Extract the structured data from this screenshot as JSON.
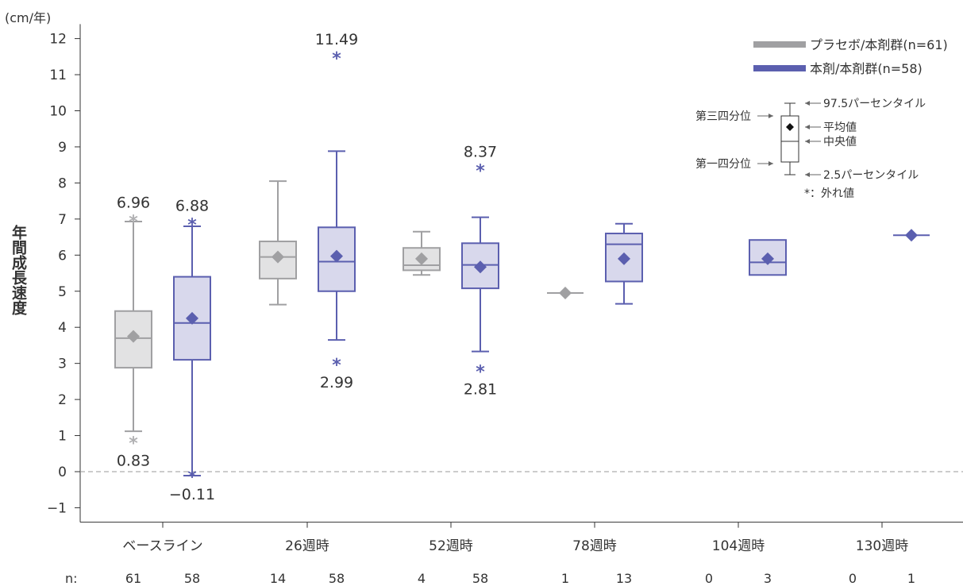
{
  "chart_data": {
    "type": "boxplot",
    "unit_label": "(cm/年)",
    "ylabel": "年間成長速度",
    "ylim": [
      -1.4,
      12.4
    ],
    "yticks": [
      -1,
      0,
      1,
      2,
      3,
      4,
      5,
      6,
      7,
      8,
      9,
      10,
      11,
      12
    ],
    "ytick_labels": [
      "−1",
      "0",
      "1",
      "2",
      "3",
      "4",
      "5",
      "6",
      "7",
      "8",
      "9",
      "10",
      "11",
      "12"
    ],
    "categories": [
      "ベースライン",
      "26週時",
      "52週時",
      "78週時",
      "104週時",
      "130週時"
    ],
    "n_label": "n:",
    "colors": {
      "placebo": "#a0a0a2",
      "placebo_fill": "#e2e2e3",
      "drug": "#5b5faf",
      "drug_fill": "#d8d8ec"
    },
    "series": [
      {
        "name": "プラセボ/本剤群(n=61)",
        "key": "placebo",
        "n": [
          "61",
          "14",
          "4",
          "1",
          "0",
          "0"
        ],
        "boxes": [
          {
            "category": "ベースライン",
            "whisker_low": 1.12,
            "q1": 2.88,
            "median": 3.7,
            "q3": 4.45,
            "whisker_high": 6.93,
            "mean": 3.75
          },
          {
            "category": "26週時",
            "whisker_low": 4.63,
            "q1": 5.35,
            "median": 5.95,
            "q3": 6.38,
            "whisker_high": 8.05,
            "mean": 5.95
          },
          {
            "category": "52週時",
            "whisker_low": 5.45,
            "q1": 5.58,
            "median": 5.72,
            "q3": 6.2,
            "whisker_high": 6.65,
            "mean": 5.9
          },
          {
            "category": "78週時",
            "whisker_low": 4.95,
            "q1": 4.95,
            "median": 4.95,
            "q3": 4.95,
            "whisker_high": 4.95,
            "mean": 4.95
          }
        ],
        "outliers": [
          {
            "category": "ベースライン",
            "value": 6.96,
            "label": "6.96"
          },
          {
            "category": "ベースライン",
            "value": 0.83,
            "label": "0.83"
          }
        ]
      },
      {
        "name": "本剤/本剤群(n=58)",
        "key": "drug",
        "n": [
          "58",
          "58",
          "58",
          "13",
          "3",
          "1"
        ],
        "boxes": [
          {
            "category": "ベースライン",
            "whisker_low": -0.11,
            "q1": 3.1,
            "median": 4.12,
            "q3": 5.4,
            "whisker_high": 6.8,
            "mean": 4.25
          },
          {
            "category": "26週時",
            "whisker_low": 3.65,
            "q1": 5.0,
            "median": 5.82,
            "q3": 6.77,
            "whisker_high": 8.88,
            "mean": 5.97
          },
          {
            "category": "52週時",
            "whisker_low": 3.33,
            "q1": 5.08,
            "median": 5.73,
            "q3": 6.33,
            "whisker_high": 7.05,
            "mean": 5.67
          },
          {
            "category": "78週時",
            "whisker_low": 4.65,
            "q1": 5.27,
            "median": 6.3,
            "q3": 6.6,
            "whisker_high": 6.87,
            "mean": 5.9
          },
          {
            "category": "104週時",
            "whisker_low": 5.45,
            "q1": 5.45,
            "median": 5.8,
            "q3": 6.42,
            "whisker_high": 6.42,
            "mean": 5.9
          },
          {
            "category": "130週時",
            "whisker_low": 6.55,
            "q1": 6.55,
            "median": 6.55,
            "q3": 6.55,
            "whisker_high": 6.55,
            "mean": 6.55
          }
        ],
        "outliers": [
          {
            "category": "ベースライン",
            "value": 6.88,
            "label": "6.88"
          },
          {
            "category": "ベースライン",
            "value": -0.11,
            "label": "−0.11"
          },
          {
            "category": "26週時",
            "value": 11.49,
            "label": "11.49"
          },
          {
            "category": "26週時",
            "value": 2.99,
            "label": "2.99"
          },
          {
            "category": "52週時",
            "value": 8.37,
            "label": "8.37"
          },
          {
            "category": "52週時",
            "value": 2.81,
            "label": "2.81"
          }
        ]
      }
    ],
    "reference_line": {
      "value": 0,
      "style": "dashed"
    },
    "legend": {
      "placement": "top-right",
      "key": {
        "third_quartile": "第三四分位",
        "first_quartile": "第一四分位",
        "p97_5": "97.5パーセンタイル",
        "mean": "平均値",
        "median": "中央値",
        "p2_5": "2.5パーセンタイル",
        "outlier": "*：外れ値"
      }
    }
  }
}
